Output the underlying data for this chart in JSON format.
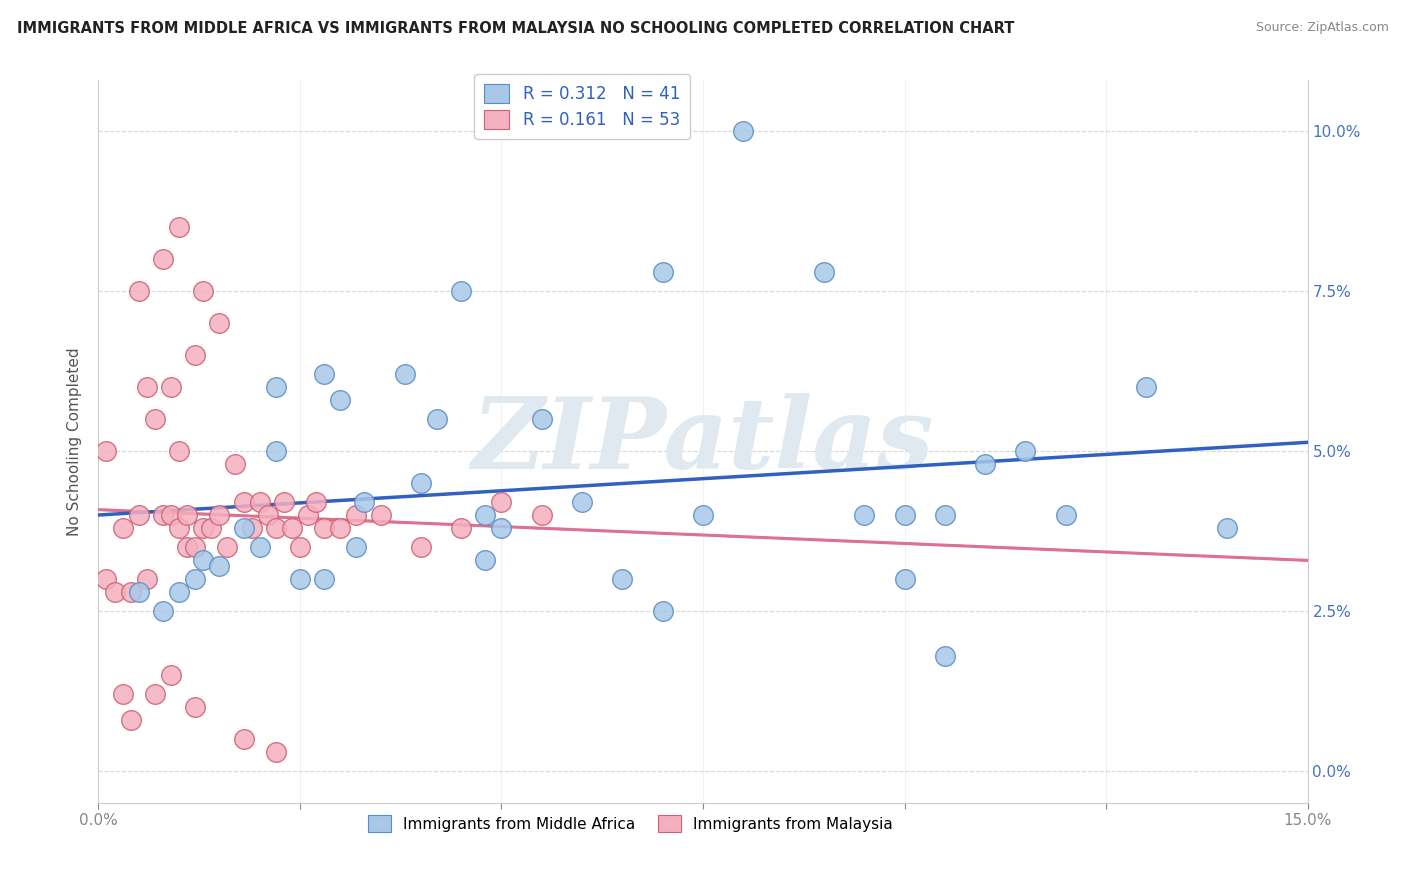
{
  "title": "IMMIGRANTS FROM MIDDLE AFRICA VS IMMIGRANTS FROM MALAYSIA NO SCHOOLING COMPLETED CORRELATION CHART",
  "source": "Source: ZipAtlas.com",
  "ylabel": "No Schooling Completed",
  "legend_blue_r": "R = 0.312",
  "legend_blue_n": "N = 41",
  "legend_pink_r": "R = 0.161",
  "legend_pink_n": "N = 53",
  "blue_face": "#A8C8E8",
  "blue_edge": "#5B8CC4",
  "pink_face": "#F4B0C0",
  "pink_edge": "#D06070",
  "blue_line": "#3060C0",
  "pink_line": "#E07090",
  "gray_dash": "#BBBBBB",
  "watermark": "ZIPatlas",
  "title_color": "#222222",
  "source_color": "#888888",
  "ylabel_color": "#555555",
  "ytick_color": "#4472C4",
  "xtick_color": "#888888",
  "grid_color": "#CCCCCC",
  "xlim": [
    0.0,
    0.15
  ],
  "ylim": [
    -0.005,
    0.108
  ],
  "blue_x": [
    0.005,
    0.008,
    0.01,
    0.012,
    0.013,
    0.015,
    0.018,
    0.02,
    0.022,
    0.022,
    0.025,
    0.028,
    0.028,
    0.03,
    0.032,
    0.033,
    0.038,
    0.04,
    0.042,
    0.045,
    0.048,
    0.048,
    0.05,
    0.055,
    0.06,
    0.065,
    0.07,
    0.075,
    0.08,
    0.09,
    0.095,
    0.1,
    0.105,
    0.105,
    0.11,
    0.115,
    0.12,
    0.13,
    0.14,
    0.07,
    0.1
  ],
  "blue_y": [
    0.028,
    0.025,
    0.028,
    0.03,
    0.033,
    0.032,
    0.038,
    0.035,
    0.06,
    0.05,
    0.03,
    0.03,
    0.062,
    0.058,
    0.035,
    0.042,
    0.062,
    0.045,
    0.055,
    0.075,
    0.04,
    0.033,
    0.038,
    0.055,
    0.042,
    0.03,
    0.078,
    0.04,
    0.1,
    0.078,
    0.04,
    0.03,
    0.04,
    0.018,
    0.048,
    0.05,
    0.04,
    0.06,
    0.038,
    0.025,
    0.04
  ],
  "pink_x": [
    0.001,
    0.001,
    0.002,
    0.003,
    0.004,
    0.005,
    0.005,
    0.006,
    0.006,
    0.007,
    0.008,
    0.008,
    0.009,
    0.009,
    0.01,
    0.01,
    0.01,
    0.011,
    0.011,
    0.012,
    0.012,
    0.013,
    0.013,
    0.014,
    0.015,
    0.015,
    0.016,
    0.017,
    0.018,
    0.019,
    0.02,
    0.021,
    0.022,
    0.023,
    0.024,
    0.025,
    0.026,
    0.027,
    0.028,
    0.03,
    0.032,
    0.035,
    0.04,
    0.045,
    0.05,
    0.055,
    0.003,
    0.004,
    0.007,
    0.009,
    0.012,
    0.018,
    0.022
  ],
  "pink_y": [
    0.03,
    0.05,
    0.028,
    0.038,
    0.028,
    0.04,
    0.075,
    0.03,
    0.06,
    0.055,
    0.04,
    0.08,
    0.04,
    0.06,
    0.038,
    0.05,
    0.085,
    0.04,
    0.035,
    0.065,
    0.035,
    0.075,
    0.038,
    0.038,
    0.04,
    0.07,
    0.035,
    0.048,
    0.042,
    0.038,
    0.042,
    0.04,
    0.038,
    0.042,
    0.038,
    0.035,
    0.04,
    0.042,
    0.038,
    0.038,
    0.04,
    0.04,
    0.035,
    0.038,
    0.042,
    0.04,
    0.012,
    0.008,
    0.012,
    0.015,
    0.01,
    0.005,
    0.003
  ]
}
